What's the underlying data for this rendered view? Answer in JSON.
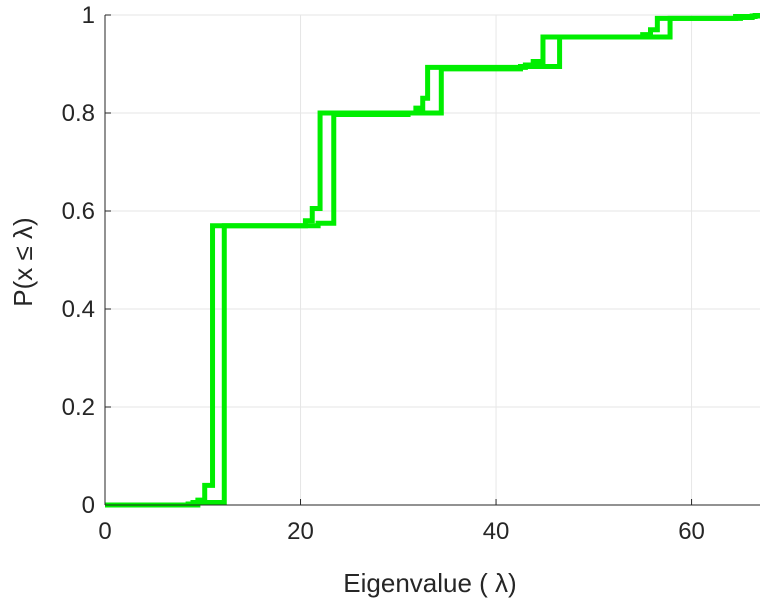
{
  "chart_data": {
    "type": "line",
    "xlabel": "Eigenvalue (   λ)",
    "ylabel": "P(x ≤ λ)",
    "xlim": [
      0,
      67
    ],
    "ylim": [
      0,
      1
    ],
    "xticks": [
      0,
      20,
      40,
      60
    ],
    "yticks": [
      0,
      0.2,
      0.4,
      0.6,
      0.8,
      1
    ],
    "ytick_labels": [
      "0",
      "0.2",
      "0.4",
      "0.6",
      "0.8",
      "1"
    ],
    "grid": true,
    "line_color": "#00ee00",
    "series": [
      {
        "step": true,
        "x": [
          0,
          9.5,
          10.2,
          11.0,
          20.5,
          21.2,
          22.0,
          31.8,
          32.5,
          33.0,
          43.0,
          43.8,
          44.8,
          55.0,
          55.8,
          56.5,
          65.0,
          66.2,
          67
        ],
        "y": [
          0,
          0.01,
          0.04,
          0.57,
          0.58,
          0.605,
          0.8,
          0.81,
          0.83,
          0.893,
          0.898,
          0.905,
          0.955,
          0.96,
          0.97,
          0.993,
          0.995,
          0.998,
          0.998
        ]
      },
      {
        "step": true,
        "x": [
          0,
          8.5,
          9.0,
          12.2,
          21.8,
          23.4,
          31.0,
          34.4,
          42.5,
          46.5,
          54.0,
          57.8,
          64.5,
          66.5,
          67
        ],
        "y": [
          0,
          0.002,
          0.005,
          0.57,
          0.575,
          0.797,
          0.8,
          0.89,
          0.895,
          0.955,
          0.955,
          0.993,
          0.997,
          0.999,
          0.999
        ]
      }
    ]
  }
}
